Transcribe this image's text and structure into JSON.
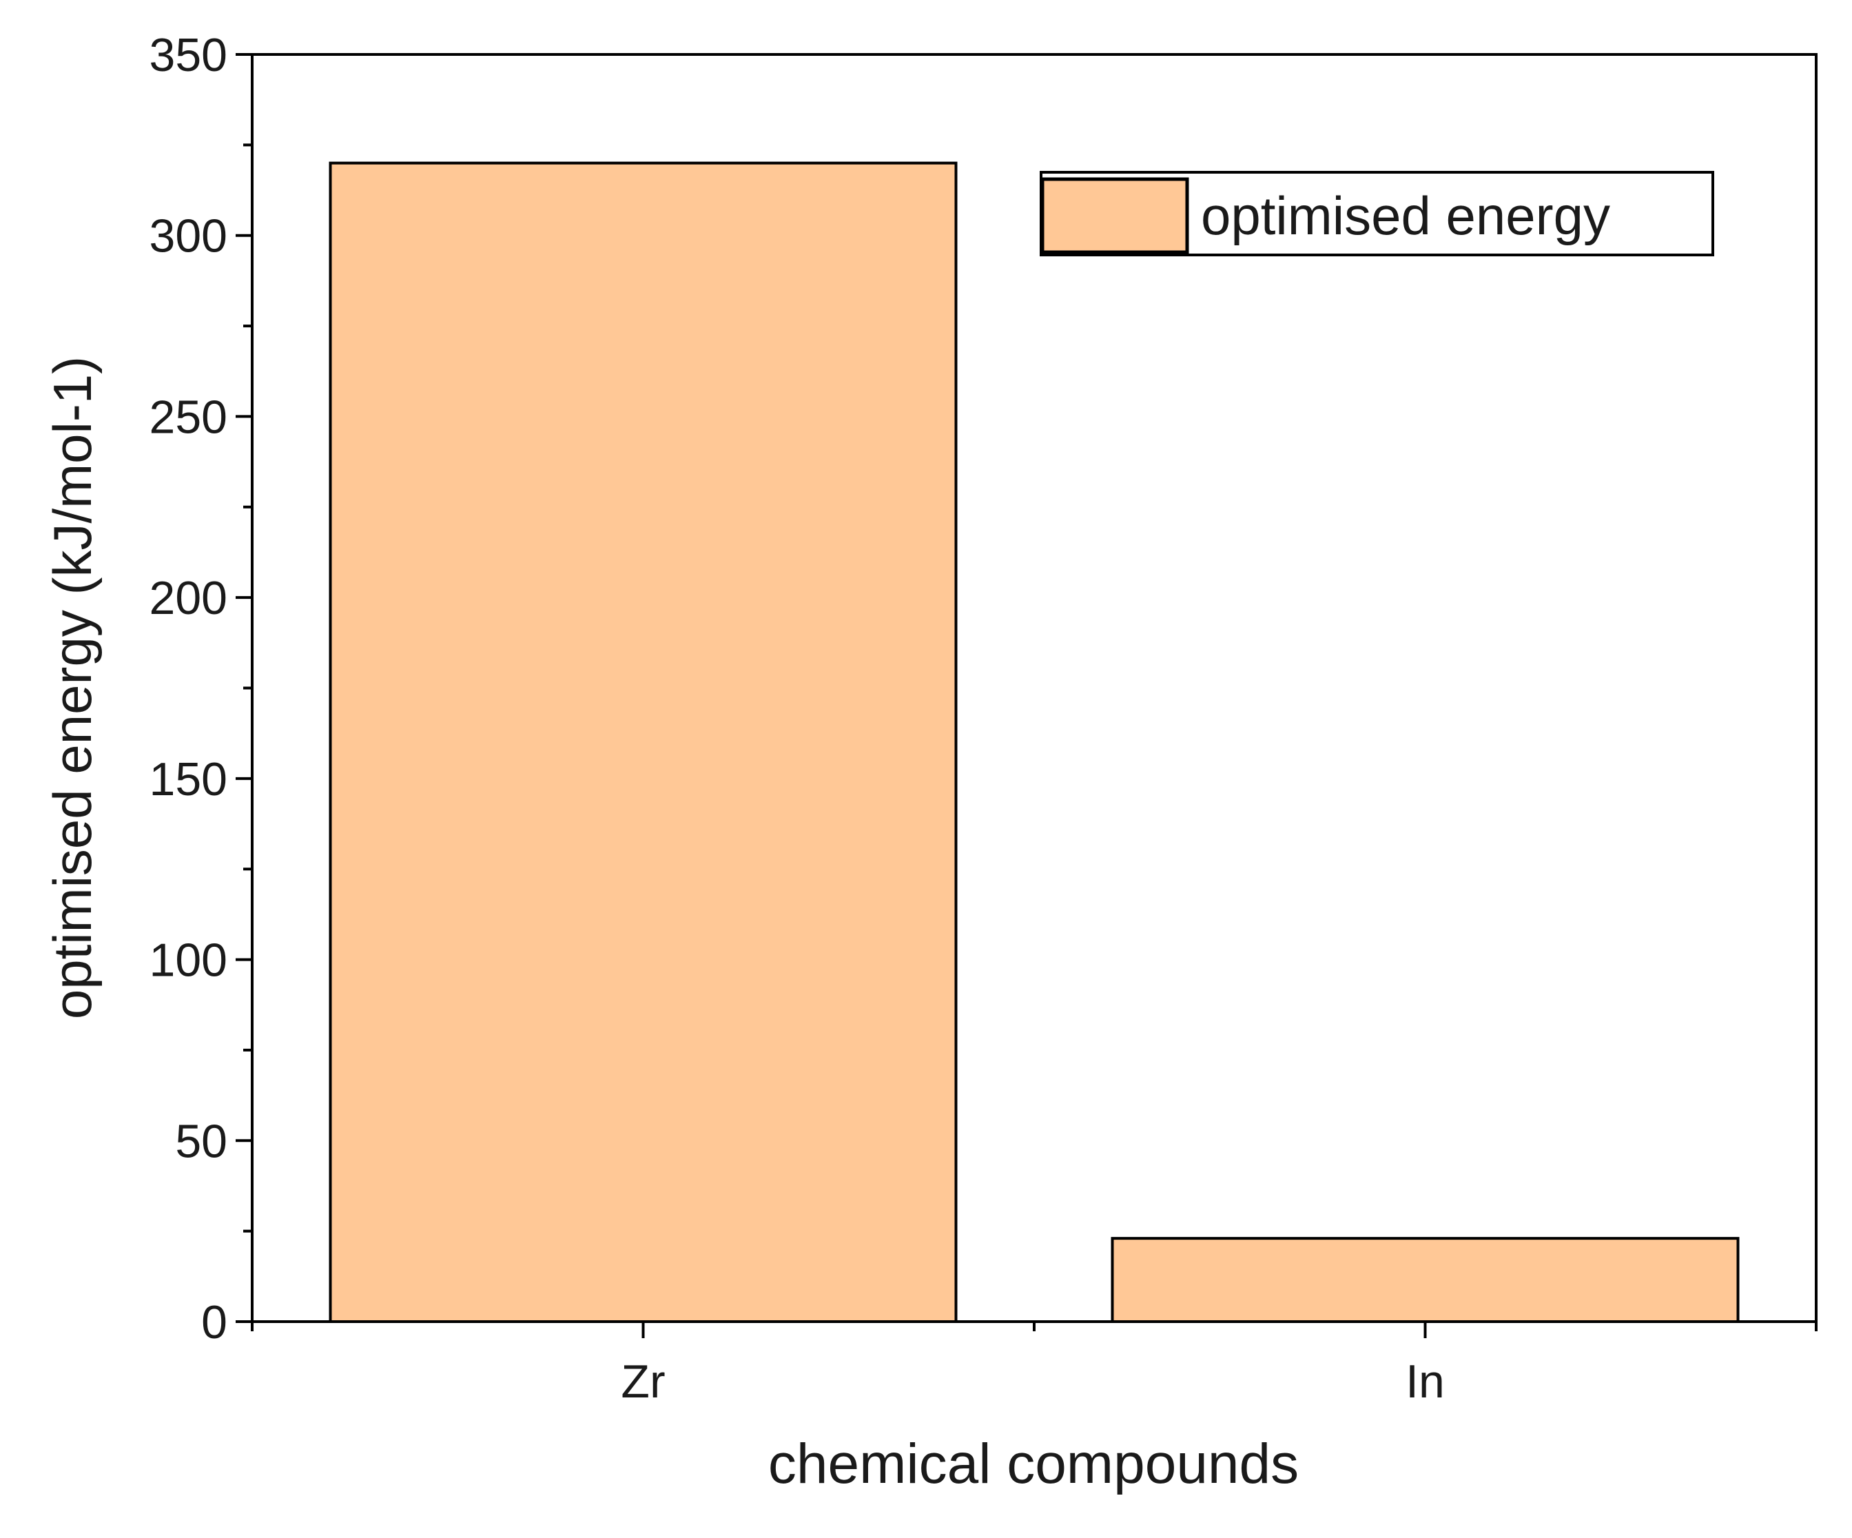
{
  "chart_data": {
    "type": "bar",
    "x_label": "chemical compounds",
    "y_label": "optimised energy (kJ/mol-1)",
    "categories": [
      "Zr",
      "In"
    ],
    "series": [
      {
        "name": "optimised energy",
        "color": "#ffc896",
        "values": [
          320,
          23
        ]
      }
    ],
    "ylim": [
      0,
      350
    ],
    "yticks": [
      0,
      50,
      100,
      150,
      200,
      250,
      300,
      350
    ],
    "yminorticks": [
      25,
      75,
      125,
      175,
      225,
      275,
      325
    ],
    "legend": "upper right"
  }
}
